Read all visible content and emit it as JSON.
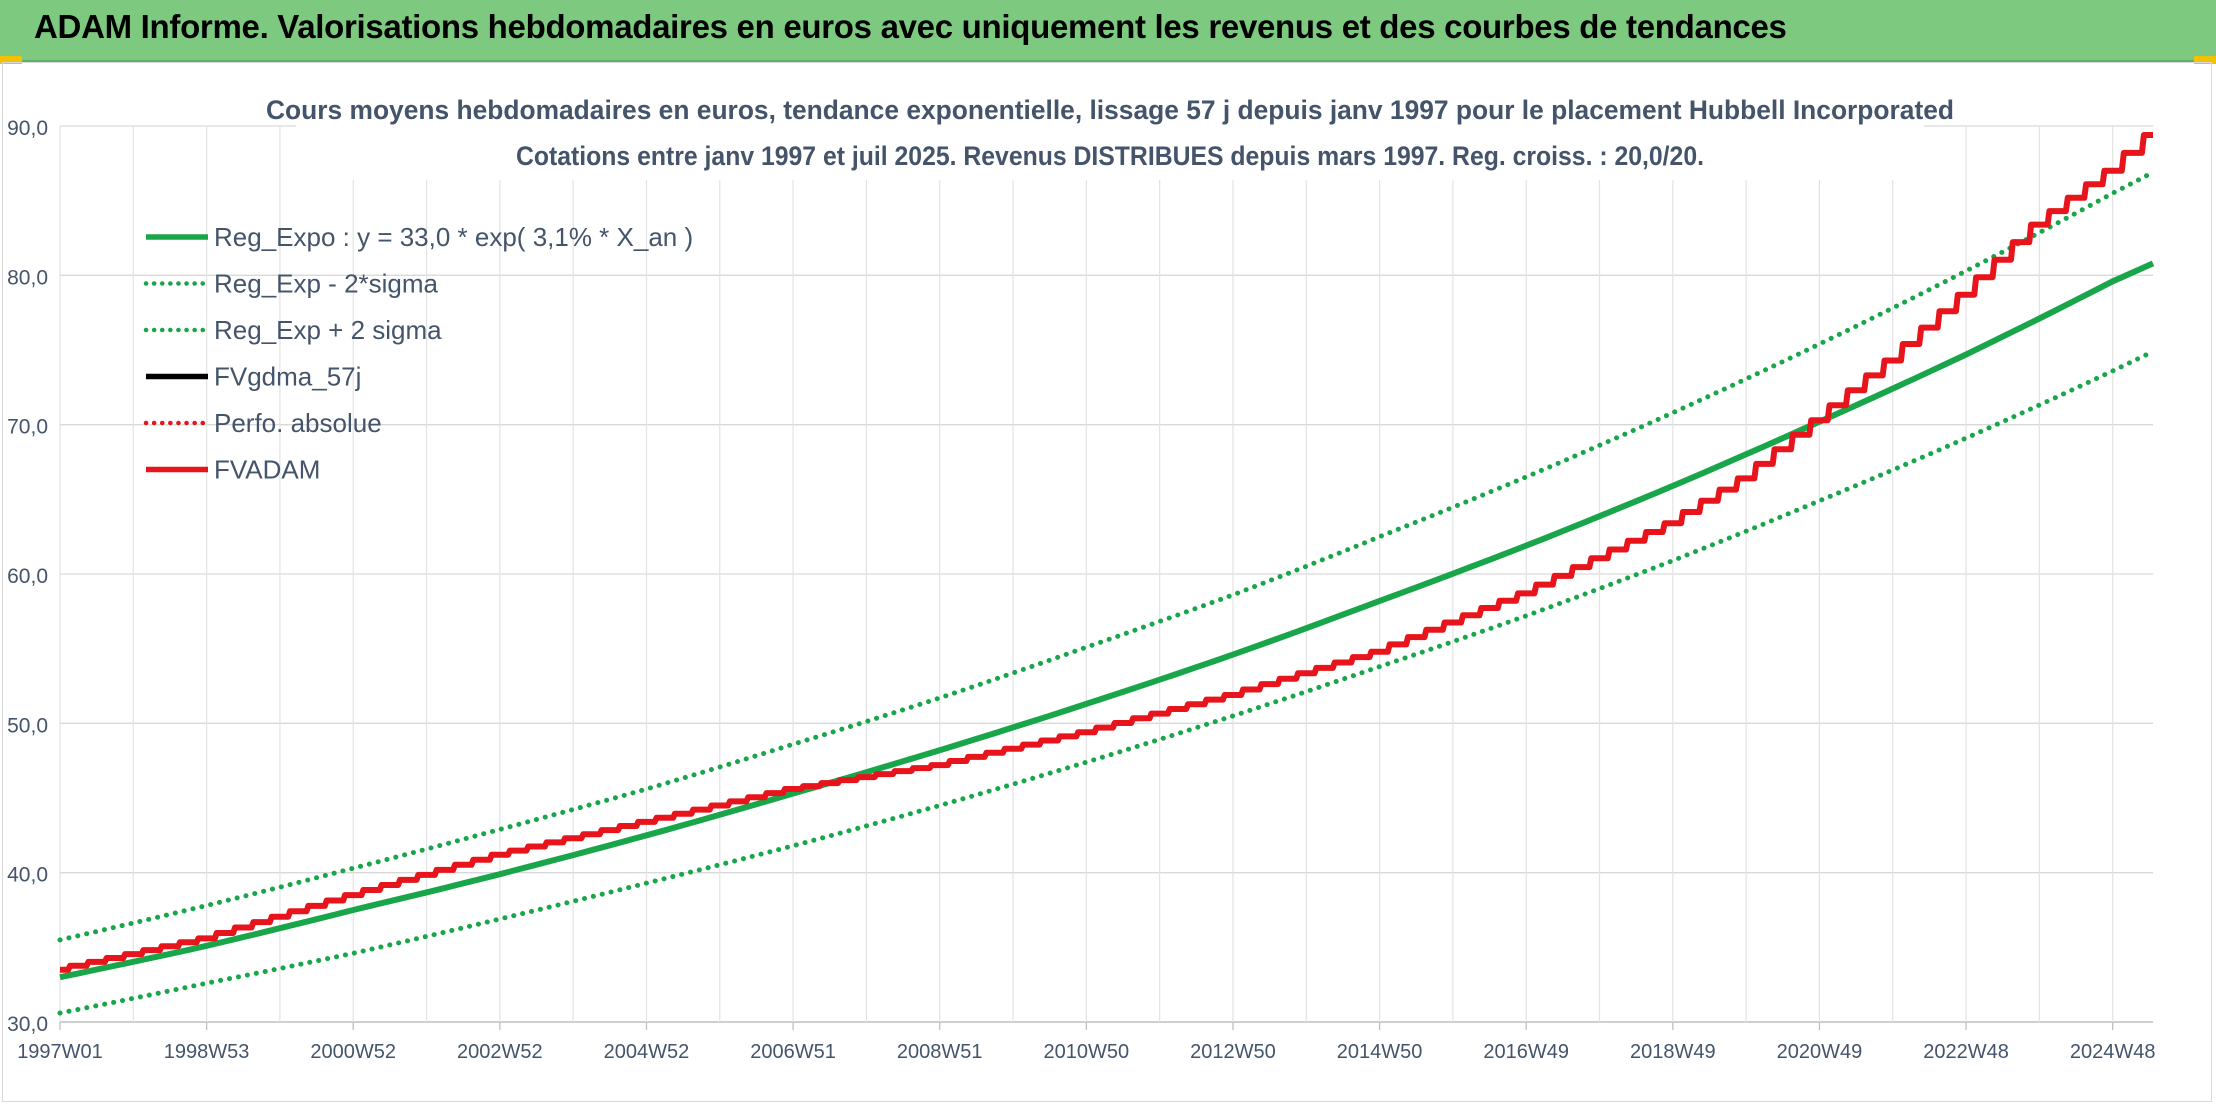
{
  "banner": {
    "title": "ADAM Informe. Valorisations hebdomadaires en euros avec uniquement les revenus et des courbes de tendances"
  },
  "chart_data": {
    "type": "line",
    "title": "Cours moyens hebdomadaires en euros, tendance exponentielle, lissage 57 j depuis janv 1997 pour le placement Hubbell Incorporated",
    "subtitle": "Cotations entre janv 1997 et juil 2025. Revenus DISTRIBUES depuis mars 1997. Reg. croiss. : 20,0/20.",
    "xlabel": "",
    "ylabel": "",
    "ylim": [
      30,
      90
    ],
    "y_ticks": [
      "30,0",
      "40,0",
      "50,0",
      "60,0",
      "70,0",
      "80,0",
      "90,0"
    ],
    "x_range": [
      1997.0,
      2025.55
    ],
    "x_tick_labels": [
      {
        "label": "1997W01",
        "x": 1997.0
      },
      {
        "label": "1998W53",
        "x": 1999.0
      },
      {
        "label": "2000W52",
        "x": 2001.0
      },
      {
        "label": "2002W52",
        "x": 2003.0
      },
      {
        "label": "2004W52",
        "x": 2005.0
      },
      {
        "label": "2006W51",
        "x": 2007.0
      },
      {
        "label": "2008W51",
        "x": 2009.0
      },
      {
        "label": "2010W50",
        "x": 2011.0
      },
      {
        "label": "2012W50",
        "x": 2013.0
      },
      {
        "label": "2014W50",
        "x": 2015.0
      },
      {
        "label": "2016W49",
        "x": 2017.0
      },
      {
        "label": "2018W49",
        "x": 2019.0
      },
      {
        "label": "2020W49",
        "x": 2021.0
      },
      {
        "label": "2022W48",
        "x": 2023.0
      },
      {
        "label": "2024W48",
        "x": 2025.0
      }
    ],
    "grid": true,
    "legend_position": "top-left",
    "series": [
      {
        "name": "Reg_Expo : y = 33,0 * exp( 3,1% *  X_an )",
        "color": "#19a64a",
        "style": "solid",
        "x": [
          1997,
          1999,
          2001,
          2003,
          2005,
          2007,
          2009,
          2011,
          2013,
          2015,
          2017,
          2019,
          2021,
          2023,
          2025,
          2025.55
        ],
        "values": [
          33.0,
          35.1,
          37.5,
          39.9,
          42.5,
          45.3,
          48.2,
          51.3,
          54.6,
          58.2,
          61.9,
          65.9,
          70.2,
          74.7,
          79.6,
          80.8
        ]
      },
      {
        "name": "Reg_Exp - 2*sigma",
        "color": "#19a64a",
        "style": "dotted",
        "x": [
          1997,
          1999,
          2001,
          2003,
          2005,
          2007,
          2009,
          2011,
          2013,
          2015,
          2017,
          2019,
          2021,
          2023,
          2025,
          2025.55
        ],
        "values": [
          30.6,
          32.6,
          34.6,
          36.9,
          39.3,
          41.8,
          44.5,
          47.4,
          50.5,
          53.8,
          57.2,
          60.9,
          64.9,
          69.1,
          73.6,
          74.9
        ]
      },
      {
        "name": "Reg_Exp + 2 sigma",
        "color": "#19a64a",
        "style": "dotted",
        "x": [
          1997,
          1999,
          2001,
          2003,
          2005,
          2007,
          2009,
          2011,
          2013,
          2015,
          2017,
          2019,
          2021,
          2023,
          2025,
          2025.55
        ],
        "values": [
          35.5,
          37.8,
          40.3,
          42.9,
          45.6,
          48.6,
          51.7,
          55.1,
          58.6,
          62.5,
          66.5,
          70.8,
          75.4,
          80.3,
          85.5,
          86.9
        ]
      },
      {
        "name": "FVgdma_57j",
        "color": "#000000",
        "style": "solid",
        "x": [],
        "values": []
      },
      {
        "name": "Perfo. absolue",
        "color": "#e8141c",
        "style": "dotted",
        "x": [],
        "values": []
      },
      {
        "name": "FVADAM",
        "color": "#e8141c",
        "style": "solid",
        "x": [
          1997,
          1999,
          2001,
          2003,
          2005,
          2007,
          2009,
          2011,
          2013,
          2015,
          2017,
          2019,
          2020,
          2021,
          2022,
          2023,
          2024,
          2025,
          2025.55
        ],
        "values": [
          33.5,
          35.6,
          38.5,
          41.2,
          43.4,
          45.6,
          47.2,
          49.4,
          51.9,
          54.8,
          58.7,
          63.4,
          66.4,
          70.3,
          74.3,
          78.7,
          83.4,
          87.0,
          89.4
        ]
      }
    ]
  }
}
